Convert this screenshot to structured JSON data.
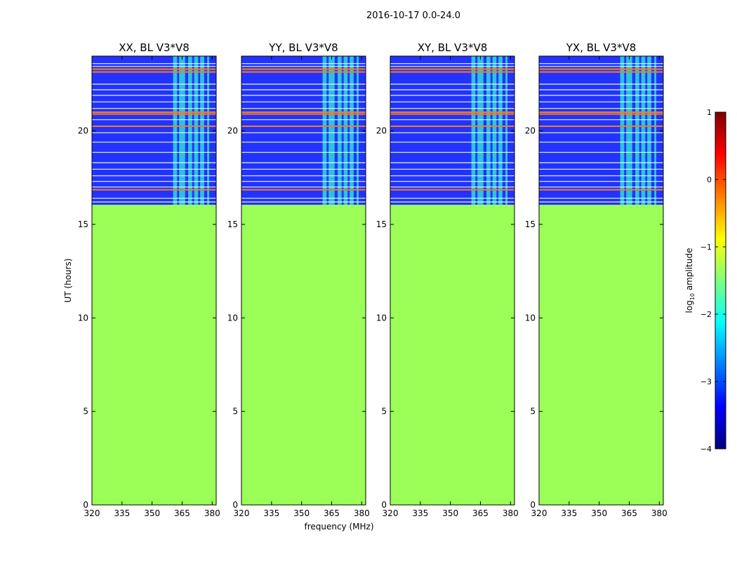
{
  "figure": {
    "suptitle": "2016-10-17 0.0-24.0",
    "xlabel": "frequency (MHz)",
    "ylabel": "UT (hours)"
  },
  "colors": {
    "fill": "#9bff57",
    "background": "#2233ff",
    "band": "#2ee6d8",
    "line_orange": "#ff7a1a",
    "line_white": "#e8f4ff"
  },
  "chart_data": [
    {
      "type": "heatmap",
      "title": "XX, BL V3*V8",
      "xlim": [
        320,
        382
      ],
      "ylim": [
        0,
        24
      ],
      "xticks": [
        320,
        335,
        350,
        365,
        380
      ],
      "yticks": [
        0,
        5,
        10,
        15,
        20
      ],
      "data_start_hour": 16.05,
      "fill_log10_amplitude": -1.2,
      "rfi_bands_mhz": [
        [
          360.5,
          362.5
        ],
        [
          363.5,
          366.5
        ],
        [
          368,
          370
        ],
        [
          371,
          373
        ],
        [
          374,
          376
        ],
        [
          377.5,
          378.5
        ]
      ],
      "strong_rfi_hours": [
        23.15,
        23.3,
        21.0,
        20.9,
        20.25,
        16.85
      ],
      "weak_rfi_hours": [
        23.6,
        23.45,
        22.5,
        22.2,
        21.9,
        21.55,
        21.2,
        20.6,
        19.9,
        19.4,
        18.85,
        18.3,
        17.95,
        17.6,
        17.3,
        17.0,
        16.4,
        16.2
      ]
    },
    {
      "type": "heatmap",
      "title": "YY, BL V3*V8",
      "xlim": [
        320,
        382
      ],
      "ylim": [
        0,
        24
      ],
      "xticks": [
        320,
        335,
        350,
        365,
        380
      ],
      "yticks": [
        0,
        5,
        10,
        15,
        20
      ],
      "data_start_hour": 16.05,
      "fill_log10_amplitude": -1.2,
      "rfi_bands_mhz": [
        [
          360.5,
          362.5
        ],
        [
          363.5,
          366.5
        ],
        [
          368,
          370
        ],
        [
          371,
          373
        ],
        [
          374,
          376
        ],
        [
          377.5,
          378.5
        ]
      ],
      "strong_rfi_hours": [
        23.15,
        23.3,
        21.0,
        20.9,
        20.25,
        16.85
      ],
      "weak_rfi_hours": [
        23.6,
        23.45,
        22.5,
        22.2,
        21.9,
        21.55,
        21.2,
        20.6,
        19.9,
        19.4,
        18.85,
        18.3,
        17.95,
        17.6,
        17.3,
        17.0,
        16.4,
        16.2
      ]
    },
    {
      "type": "heatmap",
      "title": "XY, BL V3*V8",
      "xlim": [
        320,
        382
      ],
      "ylim": [
        0,
        24
      ],
      "xticks": [
        320,
        335,
        350,
        365,
        380
      ],
      "yticks": [
        0,
        5,
        10,
        15,
        20
      ],
      "data_start_hour": 16.05,
      "fill_log10_amplitude": -1.2,
      "rfi_bands_mhz": [
        [
          360.5,
          362.5
        ],
        [
          363.5,
          366.5
        ],
        [
          368,
          370
        ],
        [
          371,
          373
        ],
        [
          374,
          376
        ],
        [
          377.5,
          378.5
        ]
      ],
      "strong_rfi_hours": [
        23.15,
        23.3,
        21.0,
        20.9,
        20.25,
        16.85
      ],
      "weak_rfi_hours": [
        23.6,
        23.45,
        22.5,
        22.2,
        21.9,
        21.55,
        21.2,
        20.6,
        19.9,
        19.4,
        18.85,
        18.3,
        17.95,
        17.6,
        17.3,
        17.0,
        16.4,
        16.2
      ]
    },
    {
      "type": "heatmap",
      "title": "YX, BL V3*V8",
      "xlim": [
        320,
        382
      ],
      "ylim": [
        0,
        24
      ],
      "xticks": [
        320,
        335,
        350,
        365,
        380
      ],
      "yticks": [
        0,
        5,
        10,
        15,
        20
      ],
      "data_start_hour": 16.05,
      "fill_log10_amplitude": -1.2,
      "rfi_bands_mhz": [
        [
          360.5,
          362.5
        ],
        [
          363.5,
          366.5
        ],
        [
          368,
          370
        ],
        [
          371,
          373
        ],
        [
          374,
          376
        ],
        [
          377.5,
          378.5
        ]
      ],
      "strong_rfi_hours": [
        23.15,
        23.3,
        21.0,
        20.9,
        20.25,
        16.85
      ],
      "weak_rfi_hours": [
        23.6,
        23.45,
        22.5,
        22.2,
        21.9,
        21.55,
        21.2,
        20.6,
        19.9,
        19.4,
        18.85,
        18.3,
        17.95,
        17.6,
        17.3,
        17.0,
        16.4,
        16.2
      ]
    }
  ],
  "colorbar": {
    "label_main": "log",
    "label_sub": "10",
    "label_rest": " amplitude",
    "range": [
      -4,
      1
    ],
    "ticks": [
      1,
      0,
      -1,
      -2,
      -3,
      -4
    ],
    "tick_labels": [
      "1",
      "0",
      "−1",
      "−2",
      "−3",
      "−4"
    ],
    "colors": [
      "#00007f",
      "#0000ff",
      "#007fff",
      "#00ffff",
      "#7fff7f",
      "#ffff00",
      "#ff7f00",
      "#ff0000",
      "#7f0000"
    ]
  }
}
